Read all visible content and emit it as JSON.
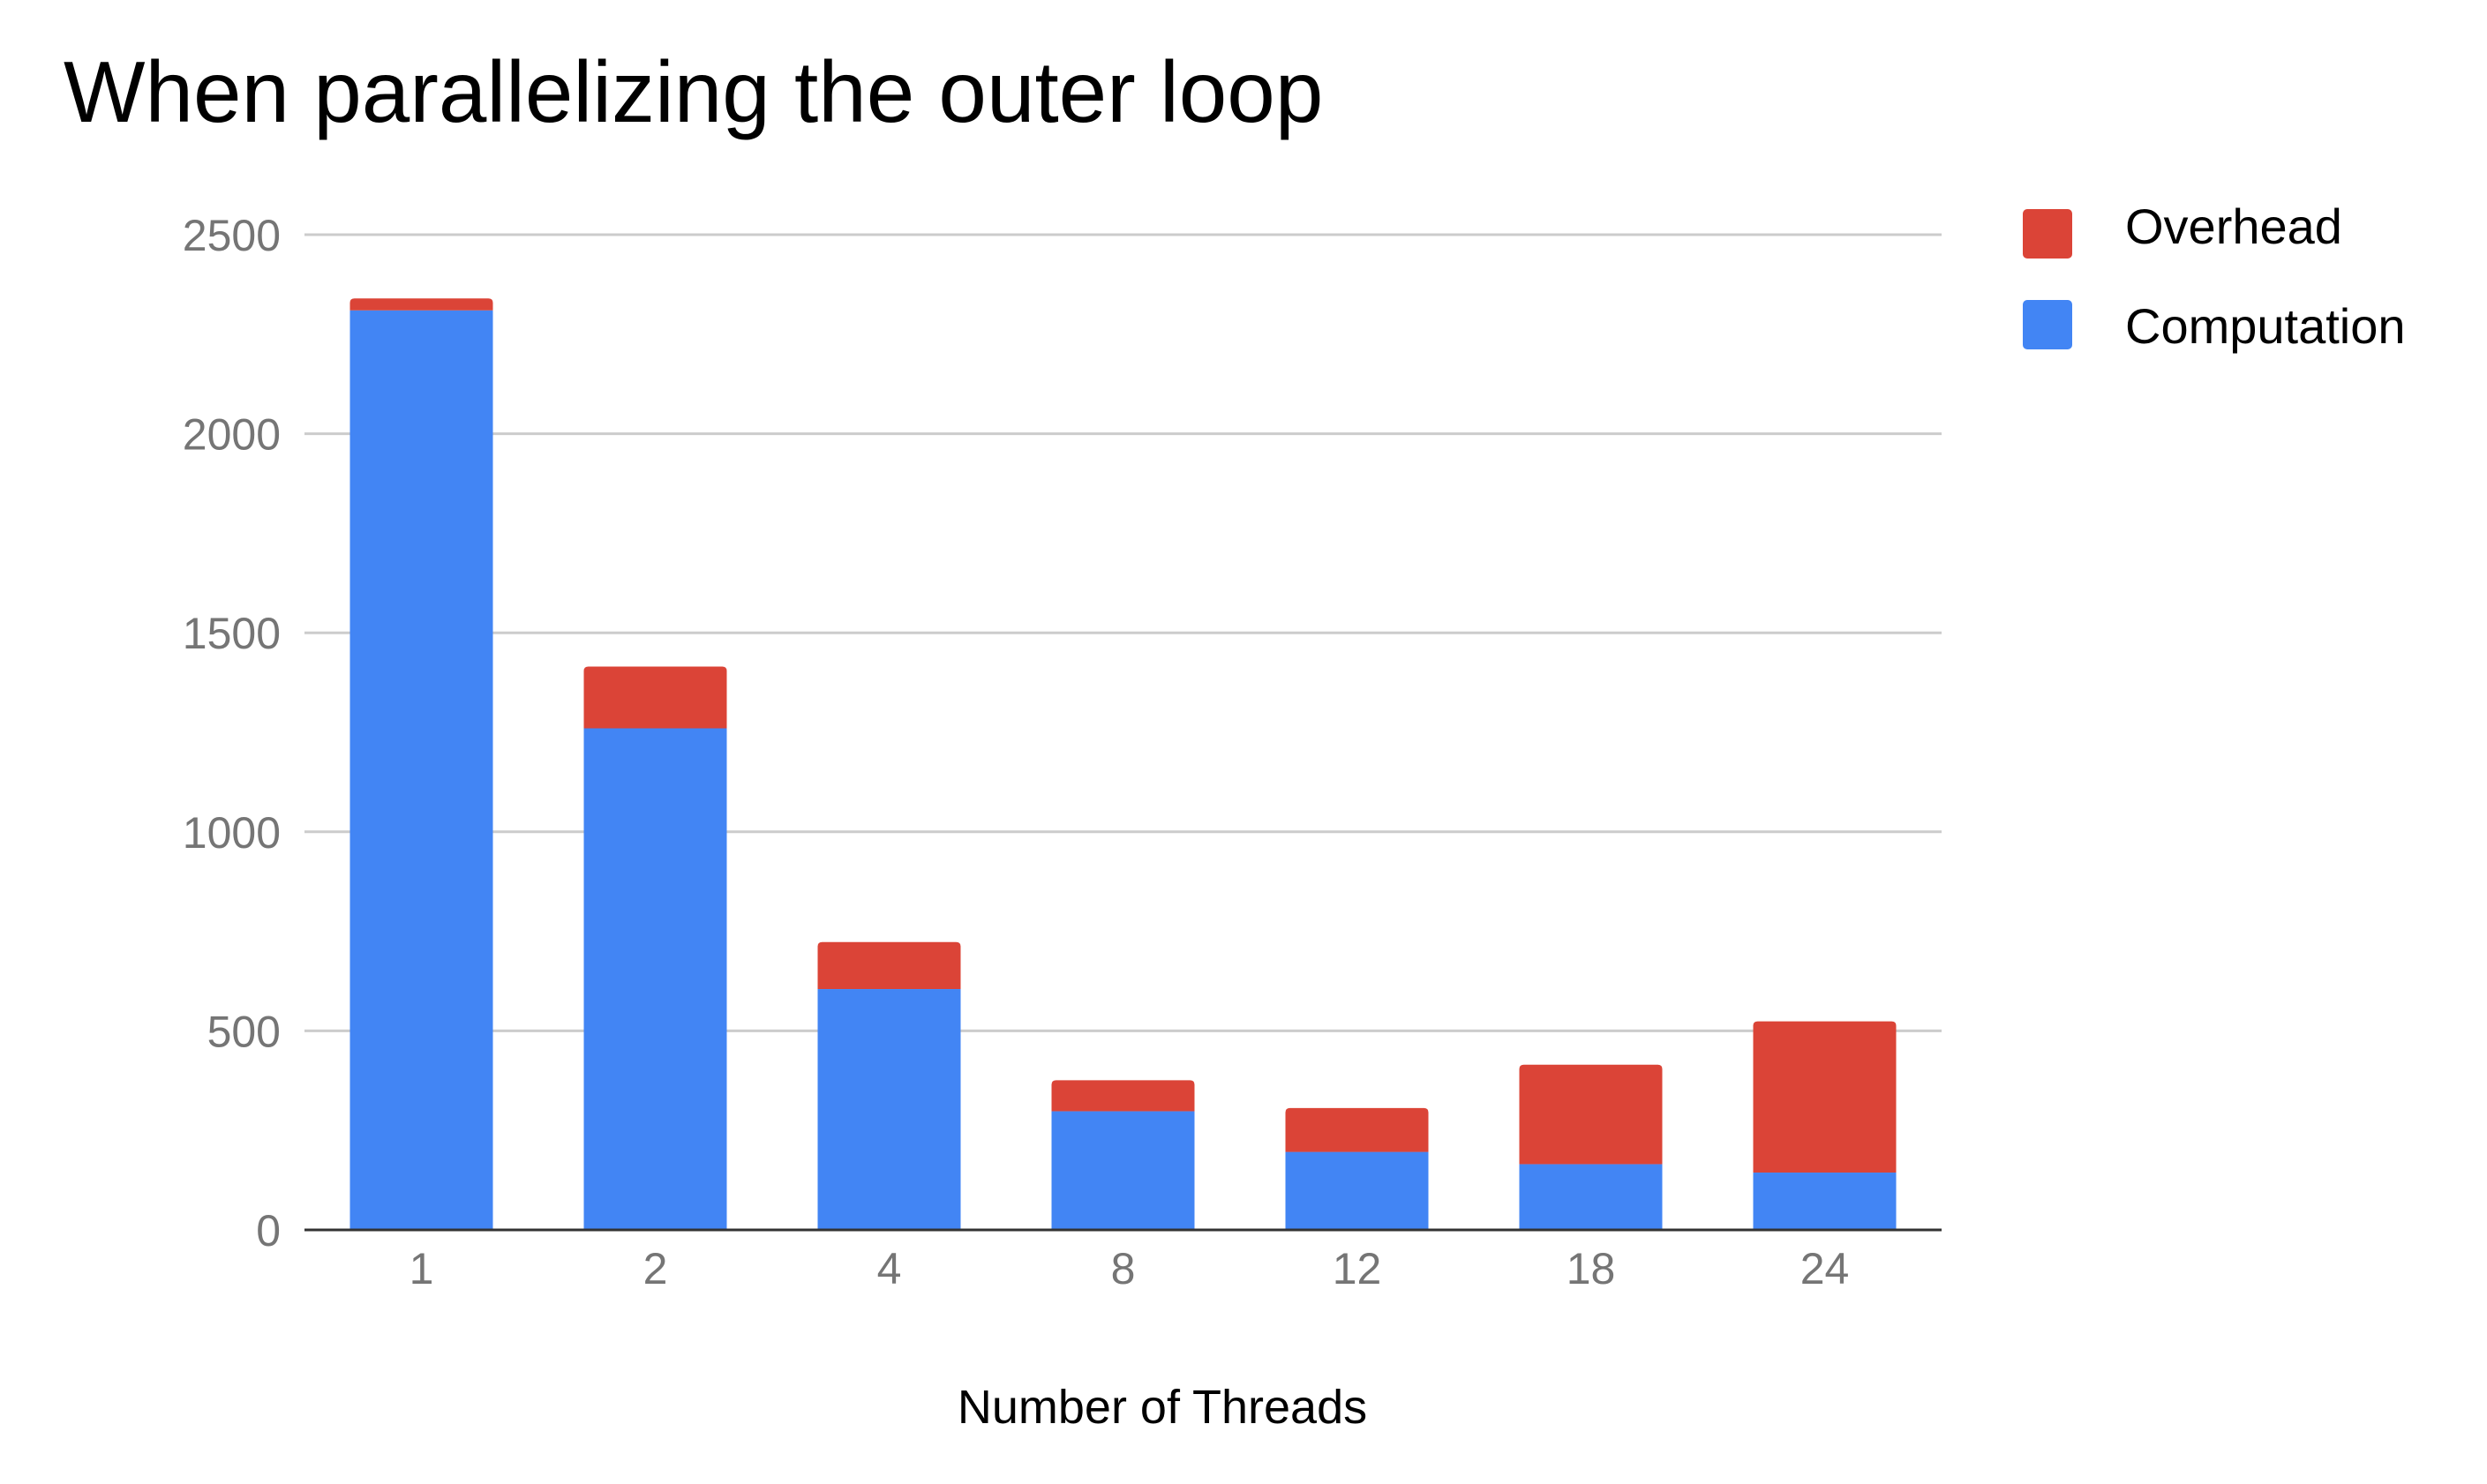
{
  "chart_data": {
    "type": "bar",
    "stacked": true,
    "title": "When parallelizing the outer loop",
    "xlabel": "Number of Threads",
    "ylabel": "",
    "categories": [
      "1",
      "2",
      "4",
      "8",
      "12",
      "18",
      "24"
    ],
    "series": [
      {
        "name": "Computation",
        "color": "#4285F4",
        "values": [
          2310,
          1260,
          605,
          298,
          196,
          165,
          144
        ]
      },
      {
        "name": "Overhead",
        "color": "#DB4437",
        "values": [
          30,
          155,
          118,
          78,
          110,
          250,
          380
        ]
      }
    ],
    "ylim": [
      0,
      2500
    ],
    "yticks": [
      "0",
      "500",
      "1000",
      "1500",
      "2000",
      "2500"
    ],
    "grid": true,
    "legend": {
      "position": "right",
      "entries": [
        "Overhead",
        "Computation"
      ]
    }
  }
}
